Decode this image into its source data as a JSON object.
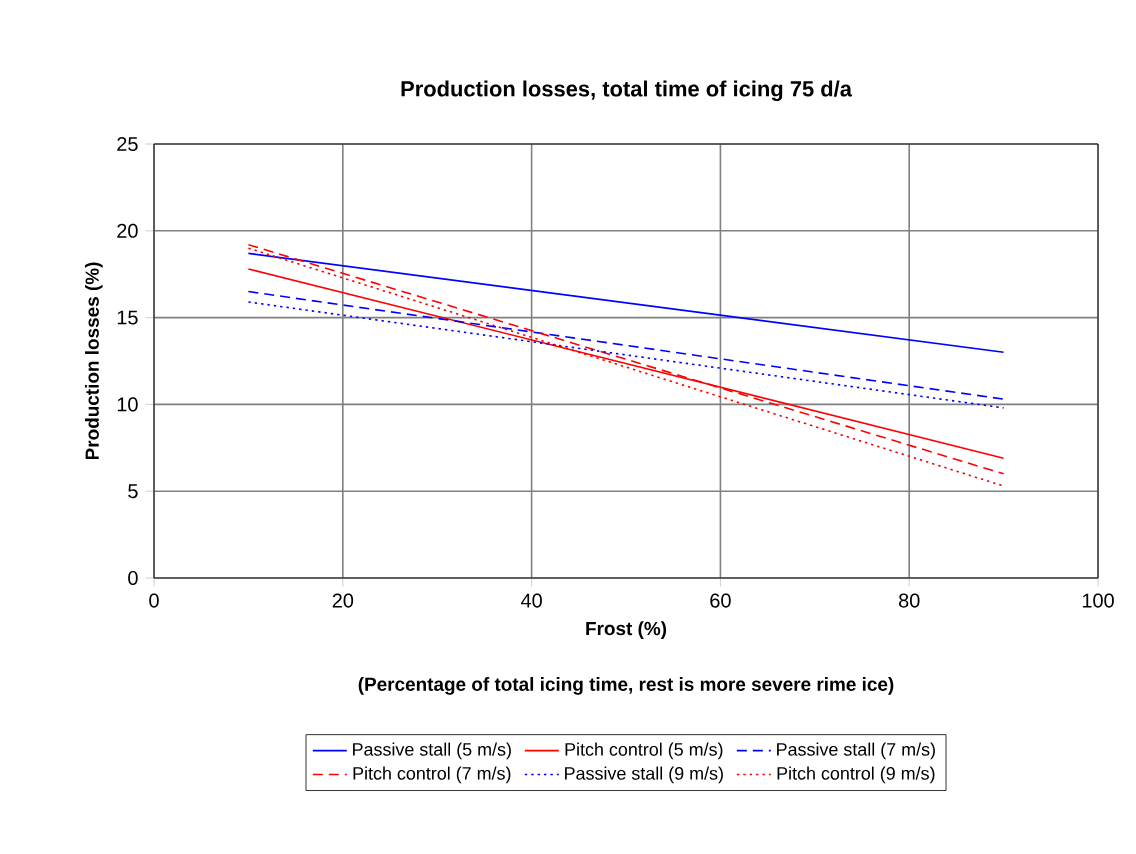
{
  "chart_data": {
    "type": "line",
    "title": "Production losses, total time of icing 75 d/a",
    "xlabel": "Frost (%)",
    "ylabel": "Production losses (%)",
    "annotations": [
      "(Percentage of total icing time, rest is more severe rime ice)"
    ],
    "x": [
      10,
      90
    ],
    "series": [
      {
        "name": "Passive stall (5 m/s)",
        "color": "#0000ff",
        "line_style": "solid",
        "values": [
          18.7,
          13.0
        ]
      },
      {
        "name": "Pitch control (5 m/s)",
        "color": "#ff0000",
        "line_style": "solid",
        "values": [
          17.8,
          6.9
        ]
      },
      {
        "name": "Passive stall (7 m/s)",
        "color": "#0000ff",
        "line_style": "dashed",
        "values": [
          16.5,
          10.3
        ]
      },
      {
        "name": "Pitch control (7 m/s)",
        "color": "#ff0000",
        "line_style": "dashed",
        "values": [
          19.2,
          6.0
        ]
      },
      {
        "name": "Passive stall (9 m/s)",
        "color": "#0000ff",
        "line_style": "dotted",
        "values": [
          15.9,
          9.8
        ]
      },
      {
        "name": "Pitch control (9 m/s)",
        "color": "#ff0000",
        "line_style": "dotted",
        "values": [
          19.0,
          5.3
        ]
      }
    ],
    "xlim": [
      0,
      100
    ],
    "xticks": [
      0,
      20,
      40,
      60,
      80,
      100
    ],
    "ylim": [
      0,
      25
    ],
    "yticks": [
      0,
      5,
      10,
      15,
      20,
      25
    ],
    "grid": true,
    "legend": "bottom",
    "marker": "none"
  }
}
